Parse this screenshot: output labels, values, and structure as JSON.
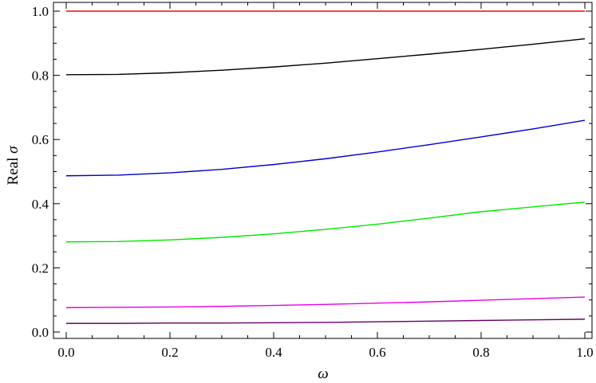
{
  "chart_data": {
    "type": "line",
    "xlabel_symbol": "ω",
    "ylabel_prefix": "Real",
    "ylabel_symbol": "σ",
    "xlim": [
      0.0,
      1.0
    ],
    "ylim": [
      0.0,
      1.0
    ],
    "x_ticks": [
      "0.0",
      "0.2",
      "0.4",
      "0.6",
      "0.8",
      "1.0"
    ],
    "y_ticks": [
      "0.0",
      "0.2",
      "0.4",
      "0.6",
      "0.8",
      "1.0"
    ],
    "grid": false,
    "legend": "none",
    "x": [
      0.0,
      0.1,
      0.2,
      0.3,
      0.4,
      0.5,
      0.6,
      0.7,
      0.8,
      0.9,
      1.0
    ],
    "series": [
      {
        "color": "#ff0000",
        "values": [
          1.0,
          1.0,
          1.0,
          1.0,
          1.0,
          1.0,
          1.0,
          1.0,
          1.0,
          1.0,
          1.0
        ]
      },
      {
        "color": "#000000",
        "values": [
          0.802,
          0.803,
          0.808,
          0.816,
          0.826,
          0.838,
          0.852,
          0.866,
          0.881,
          0.897,
          0.914
        ]
      },
      {
        "color": "#0000cc",
        "values": [
          0.487,
          0.489,
          0.496,
          0.507,
          0.522,
          0.54,
          0.561,
          0.584,
          0.608,
          0.633,
          0.66
        ]
      },
      {
        "color": "#00e600",
        "values": [
          0.281,
          0.282,
          0.287,
          0.295,
          0.306,
          0.32,
          0.336,
          0.355,
          0.375,
          0.39,
          0.405
        ]
      },
      {
        "color": "#e600e6",
        "values": [
          0.076,
          0.077,
          0.078,
          0.08,
          0.083,
          0.086,
          0.09,
          0.094,
          0.099,
          0.104,
          0.109
        ]
      },
      {
        "color": "#660066",
        "values": [
          0.027,
          0.027,
          0.028,
          0.028,
          0.029,
          0.03,
          0.032,
          0.034,
          0.036,
          0.038,
          0.04
        ]
      }
    ]
  }
}
